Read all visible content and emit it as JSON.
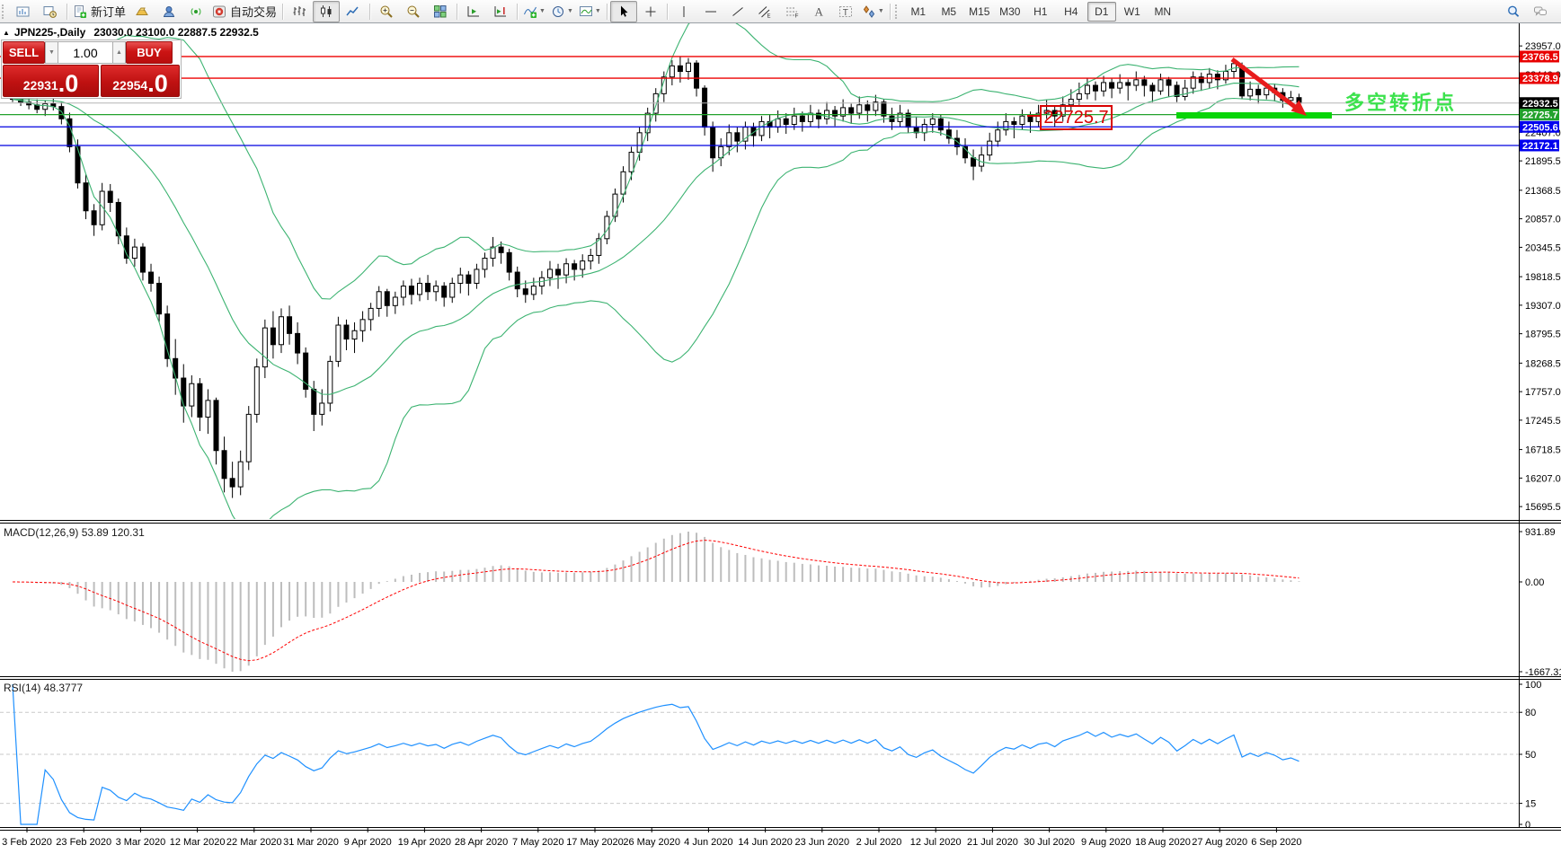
{
  "toolbar": {
    "groups": [
      {
        "items": [
          {
            "icon": "chart-window-icon",
            "name": "new-chart-button"
          },
          {
            "icon": "profiles-icon",
            "name": "profiles-button"
          }
        ]
      },
      {
        "items": [
          {
            "icon": "new-order-icon",
            "name": "new-order-button",
            "label": "新订单"
          },
          {
            "icon": "market-watch-icon",
            "name": "market-watch-button"
          },
          {
            "icon": "community-icon",
            "name": "community-button"
          },
          {
            "icon": "signals-icon",
            "name": "signals-button"
          },
          {
            "icon": "autotrading-icon",
            "name": "autotrading-button",
            "label": "自动交易"
          }
        ]
      },
      {
        "items": [
          {
            "icon": "bar-chart-icon",
            "name": "bar-chart-button"
          },
          {
            "icon": "candlestick-chart-icon",
            "name": "candlestick-chart-button",
            "active": true
          },
          {
            "icon": "line-chart-icon",
            "name": "line-chart-button"
          }
        ]
      },
      {
        "items": [
          {
            "icon": "zoom-in-icon",
            "name": "zoom-in-button"
          },
          {
            "icon": "zoom-out-icon",
            "name": "zoom-out-button"
          },
          {
            "icon": "tile-windows-icon",
            "name": "tile-windows-button"
          }
        ]
      },
      {
        "items": [
          {
            "icon": "auto-scroll-icon",
            "name": "auto-scroll-button"
          },
          {
            "icon": "chart-shift-icon",
            "name": "chart-shift-button"
          }
        ]
      },
      {
        "items": [
          {
            "icon": "indicators-icon",
            "name": "indicators-button",
            "dropdown": true
          },
          {
            "icon": "periods-icon",
            "name": "periods-button",
            "dropdown": true
          },
          {
            "icon": "templates-icon",
            "name": "templates-button",
            "dropdown": true
          }
        ]
      },
      {
        "items": [
          {
            "icon": "cursor-icon",
            "name": "cursor-button",
            "active": true
          },
          {
            "icon": "crosshair-icon",
            "name": "crosshair-button"
          }
        ]
      },
      {
        "items": [
          {
            "icon": "vertical-line-icon",
            "name": "vertical-line-button"
          },
          {
            "icon": "horizontal-line-icon",
            "name": "horizontal-line-button"
          },
          {
            "icon": "trendline-icon",
            "name": "trendline-button"
          },
          {
            "icon": "channel-icon",
            "name": "channel-button"
          },
          {
            "icon": "fibonacci-icon",
            "name": "fibonacci-button"
          },
          {
            "icon": "text-icon",
            "name": "text-button"
          },
          {
            "icon": "text-label-icon",
            "name": "text-label-button"
          },
          {
            "icon": "arrows-icon",
            "name": "arrows-button",
            "dropdown": true
          }
        ]
      }
    ],
    "timeframes": [
      "M1",
      "M5",
      "M15",
      "M30",
      "H1",
      "H4",
      "D1",
      "W1",
      "MN"
    ],
    "active_timeframe": "D1",
    "right_icons": [
      {
        "icon": "search-icon",
        "name": "search-button"
      },
      {
        "icon": "chat-icon",
        "name": "chat-button"
      }
    ]
  },
  "chart": {
    "title": {
      "symbol": "JPN225-,Daily",
      "ohlc": "23030.0 23100.0 22887.5 22932.5"
    },
    "one_click": {
      "sell_label": "SELL",
      "buy_label": "BUY",
      "volume": "1.00",
      "sell_price": "22931",
      "sell_price_frac": ".0",
      "buy_price": "22954",
      "buy_price_frac": ".0"
    }
  },
  "indicators": {
    "macd": {
      "label": "MACD(12,26,9) 53.89 120.31",
      "axis_labels": [
        931.89,
        0.0,
        -1667.31
      ]
    },
    "rsi": {
      "label": "RSI(14) 48.3777",
      "axis_labels": [
        100,
        80,
        50,
        15,
        0
      ],
      "levels": [
        80,
        50,
        15
      ]
    }
  },
  "overlays": {
    "callout_text": "22725.7",
    "annotation_text": "多空转折点",
    "annotation_color": "#3ce24d",
    "support_bar_color": "#08d508",
    "arrow_color": "#e81c1c"
  },
  "chart_data": {
    "type": "candlestick",
    "symbol": "JPN225-",
    "timeframe": "Daily",
    "current_bar_ohlc": {
      "open": 23030.0,
      "high": 23100.0,
      "low": 22887.5,
      "close": 22932.5
    },
    "bid_price": 22932.5,
    "price_ticks": [
      23957.0,
      23446.0,
      22407.0,
      21895.5,
      21368.5,
      20857.0,
      20345.5,
      19818.5,
      19307.0,
      18795.5,
      18268.5,
      17757.0,
      17245.5,
      16718.5,
      16207.0,
      15695.5
    ],
    "hlines": [
      {
        "price": 23766.5,
        "color": "#ee0000",
        "width": 1.4
      },
      {
        "price": 23378.9,
        "color": "#ee0000",
        "width": 1.4
      },
      {
        "price": 22932.5,
        "color": "#b4b4b4",
        "width": 1
      },
      {
        "price": 22725.7,
        "color": "#22a12c",
        "width": 1.2
      },
      {
        "price": 22505.6,
        "color": "#0000e0",
        "width": 1.2
      },
      {
        "price": 22172.1,
        "color": "#0000e0",
        "width": 1.2
      }
    ],
    "price_tags": [
      {
        "value": "23766.5",
        "price": 23766.5,
        "bg": "#e80000"
      },
      {
        "value": "23378.9",
        "price": 23378.9,
        "bg": "#e80000"
      },
      {
        "value": "22932.5",
        "price": 22932.5,
        "bg": "#000000"
      },
      {
        "value": "22725.7",
        "price": 22725.7,
        "bg": "#22a12c"
      },
      {
        "value": "22505.6",
        "price": 22505.6,
        "bg": "#0000ee"
      },
      {
        "value": "22172.1",
        "price": 22172.1,
        "bg": "#0000ee"
      }
    ],
    "date_ticks": [
      "3 Feb 2020",
      "23 Feb 2020",
      "3 Mar 2020",
      "12 Mar 2020",
      "22 Mar 2020",
      "31 Mar 2020",
      "9 Apr 2020",
      "19 Apr 2020",
      "28 Apr 2020",
      "7 May 2020",
      "17 May 2020",
      "26 May 2020",
      "4 Jun 2020",
      "14 Jun 2020",
      "23 Jun 2020",
      "2 Jul 2020",
      "12 Jul 2020",
      "21 Jul 2020",
      "30 Jul 2020",
      "9 Aug 2020",
      "18 Aug 2020",
      "27 Aug 2020",
      "6 Sep 2020"
    ],
    "bollinger": {
      "period": 20,
      "deviation": 2,
      "color": "#3cb371"
    },
    "candles": [
      [
        23100,
        23180,
        22950,
        23000
      ],
      [
        23000,
        23120,
        22880,
        22950
      ],
      [
        22950,
        23060,
        22820,
        22900
      ],
      [
        22900,
        23000,
        22750,
        22820
      ],
      [
        22820,
        22980,
        22700,
        22920
      ],
      [
        22920,
        23030,
        22800,
        22870
      ],
      [
        22870,
        22950,
        22550,
        22650
      ],
      [
        22650,
        22760,
        22050,
        22150
      ],
      [
        22150,
        22280,
        21400,
        21500
      ],
      [
        21500,
        21650,
        20850,
        21000
      ],
      [
        21000,
        21120,
        20550,
        20750
      ],
      [
        20750,
        21500,
        20650,
        21350
      ],
      [
        21350,
        21480,
        20980,
        21150
      ],
      [
        21150,
        21220,
        20400,
        20550
      ],
      [
        20550,
        20700,
        20050,
        20150
      ],
      [
        20150,
        20500,
        20000,
        20350
      ],
      [
        20350,
        20420,
        19750,
        19900
      ],
      [
        19900,
        20050,
        19550,
        19700
      ],
      [
        19700,
        19820,
        19000,
        19150
      ],
      [
        19150,
        19300,
        18200,
        18350
      ],
      [
        18350,
        18700,
        17700,
        18000
      ],
      [
        18000,
        18250,
        17200,
        17500
      ],
      [
        17500,
        18050,
        17300,
        17900
      ],
      [
        17900,
        18000,
        17050,
        17300
      ],
      [
        17300,
        17800,
        17000,
        17600
      ],
      [
        17600,
        17650,
        16450,
        16700
      ],
      [
        16700,
        16950,
        15950,
        16200
      ],
      [
        16200,
        16500,
        15850,
        16050
      ],
      [
        16050,
        16700,
        15900,
        16500
      ],
      [
        16500,
        17500,
        16350,
        17350
      ],
      [
        17350,
        18350,
        17200,
        18200
      ],
      [
        18200,
        19050,
        18000,
        18900
      ],
      [
        18900,
        19200,
        18350,
        18600
      ],
      [
        18600,
        19250,
        18450,
        19100
      ],
      [
        19100,
        19300,
        18600,
        18800
      ],
      [
        18800,
        19000,
        18250,
        18450
      ],
      [
        18450,
        18550,
        17650,
        17800
      ],
      [
        17800,
        17950,
        17050,
        17350
      ],
      [
        17350,
        17800,
        17150,
        17550
      ],
      [
        17550,
        18400,
        17400,
        18300
      ],
      [
        18300,
        19100,
        18200,
        18950
      ],
      [
        18950,
        19050,
        18500,
        18700
      ],
      [
        18700,
        19000,
        18450,
        18850
      ],
      [
        18850,
        19200,
        18650,
        19050
      ],
      [
        19050,
        19350,
        18850,
        19250
      ],
      [
        19250,
        19650,
        19100,
        19550
      ],
      [
        19550,
        19600,
        19100,
        19300
      ],
      [
        19300,
        19550,
        19150,
        19450
      ],
      [
        19450,
        19750,
        19300,
        19650
      ],
      [
        19650,
        19780,
        19320,
        19500
      ],
      [
        19500,
        19800,
        19380,
        19700
      ],
      [
        19700,
        19850,
        19400,
        19550
      ],
      [
        19550,
        19750,
        19380,
        19650
      ],
      [
        19650,
        19720,
        19280,
        19450
      ],
      [
        19450,
        19800,
        19350,
        19700
      ],
      [
        19700,
        19980,
        19520,
        19850
      ],
      [
        19850,
        19920,
        19480,
        19700
      ],
      [
        19700,
        20050,
        19600,
        19950
      ],
      [
        19950,
        20250,
        19800,
        20150
      ],
      [
        20150,
        20530,
        20000,
        20350
      ],
      [
        20350,
        20450,
        20050,
        20250
      ],
      [
        20250,
        20320,
        19750,
        19900
      ],
      [
        19900,
        20000,
        19450,
        19600
      ],
      [
        19600,
        19750,
        19350,
        19500
      ],
      [
        19500,
        19800,
        19400,
        19650
      ],
      [
        19650,
        19920,
        19500,
        19800
      ],
      [
        19800,
        20100,
        19650,
        19950
      ],
      [
        19950,
        20050,
        19600,
        19850
      ],
      [
        19850,
        20150,
        19700,
        20050
      ],
      [
        20050,
        20120,
        19750,
        19950
      ],
      [
        19950,
        20220,
        19800,
        20100
      ],
      [
        20100,
        20320,
        19950,
        20200
      ],
      [
        20200,
        20600,
        20050,
        20500
      ],
      [
        20500,
        21000,
        20400,
        20900
      ],
      [
        20900,
        21400,
        20800,
        21300
      ],
      [
        21300,
        21800,
        21150,
        21700
      ],
      [
        21700,
        22150,
        21550,
        22050
      ],
      [
        22050,
        22500,
        21900,
        22400
      ],
      [
        22400,
        22850,
        22250,
        22750
      ],
      [
        22750,
        23200,
        22600,
        23100
      ],
      [
        23100,
        23500,
        22950,
        23400
      ],
      [
        23400,
        23700,
        23250,
        23600
      ],
      [
        23600,
        23760,
        23300,
        23500
      ],
      [
        23500,
        23740,
        23350,
        23650
      ],
      [
        23650,
        23700,
        23050,
        23200
      ],
      [
        23200,
        23250,
        22350,
        22500
      ],
      [
        22500,
        22600,
        21700,
        21950
      ],
      [
        21950,
        22300,
        21800,
        22150
      ],
      [
        22150,
        22550,
        22000,
        22400
      ],
      [
        22400,
        22500,
        22050,
        22250
      ],
      [
        22250,
        22600,
        22100,
        22500
      ],
      [
        22500,
        22580,
        22150,
        22350
      ],
      [
        22350,
        22700,
        22250,
        22600
      ],
      [
        22600,
        22720,
        22300,
        22500
      ],
      [
        22500,
        22800,
        22400,
        22650
      ],
      [
        22650,
        22750,
        22380,
        22550
      ],
      [
        22550,
        22850,
        22450,
        22700
      ],
      [
        22700,
        22780,
        22420,
        22600
      ],
      [
        22600,
        22900,
        22500,
        22750
      ],
      [
        22750,
        22820,
        22480,
        22650
      ],
      [
        22650,
        22950,
        22550,
        22800
      ],
      [
        22800,
        22880,
        22520,
        22700
      ],
      [
        22700,
        23000,
        22600,
        22850
      ],
      [
        22850,
        22920,
        22560,
        22750
      ],
      [
        22750,
        23050,
        22650,
        22900
      ],
      [
        22900,
        22980,
        22600,
        22800
      ],
      [
        22800,
        23080,
        22700,
        22950
      ],
      [
        22950,
        23000,
        22580,
        22700
      ],
      [
        22700,
        22850,
        22450,
        22600
      ],
      [
        22600,
        22900,
        22500,
        22750
      ],
      [
        22750,
        22820,
        22400,
        22500
      ],
      [
        22500,
        22680,
        22300,
        22400
      ],
      [
        22400,
        22650,
        22250,
        22550
      ],
      [
        22550,
        22750,
        22400,
        22650
      ],
      [
        22650,
        22720,
        22350,
        22450
      ],
      [
        22450,
        22600,
        22200,
        22300
      ],
      [
        22300,
        22450,
        22000,
        22150
      ],
      [
        22150,
        22300,
        21850,
        21950
      ],
      [
        21950,
        22100,
        21550,
        21800
      ],
      [
        21800,
        22150,
        21700,
        22000
      ],
      [
        22000,
        22400,
        21900,
        22250
      ],
      [
        22250,
        22600,
        22150,
        22450
      ],
      [
        22450,
        22750,
        22350,
        22600
      ],
      [
        22600,
        22680,
        22300,
        22550
      ],
      [
        22550,
        22820,
        22450,
        22700
      ],
      [
        22700,
        22780,
        22400,
        22600
      ],
      [
        22600,
        22900,
        22500,
        22750
      ],
      [
        22750,
        23000,
        22650,
        22800
      ],
      [
        22800,
        22870,
        22500,
        22700
      ],
      [
        22700,
        23050,
        22600,
        22900
      ],
      [
        22900,
        23180,
        22800,
        23000
      ],
      [
        23000,
        23300,
        22900,
        23100
      ],
      [
        23100,
        23380,
        23000,
        23250
      ],
      [
        23250,
        23320,
        22980,
        23150
      ],
      [
        23150,
        23420,
        23050,
        23300
      ],
      [
        23300,
        23370,
        23020,
        23200
      ],
      [
        23200,
        23450,
        23100,
        23300
      ],
      [
        23300,
        23360,
        22980,
        23250
      ],
      [
        23250,
        23500,
        23150,
        23350
      ],
      [
        23350,
        23420,
        23050,
        23250
      ],
      [
        23250,
        23300,
        22950,
        23150
      ],
      [
        23150,
        23460,
        23080,
        23350
      ],
      [
        23350,
        23400,
        23050,
        23250
      ],
      [
        23250,
        23320,
        22950,
        23050
      ],
      [
        23050,
        23350,
        22980,
        23200
      ],
      [
        23200,
        23500,
        23100,
        23400
      ],
      [
        23400,
        23480,
        23150,
        23300
      ],
      [
        23300,
        23560,
        23200,
        23450
      ],
      [
        23450,
        23520,
        23180,
        23350
      ],
      [
        23350,
        23620,
        23280,
        23500
      ],
      [
        23500,
        23730,
        23380,
        23640
      ],
      [
        23600,
        23660,
        23000,
        23060
      ],
      [
        23060,
        23320,
        22980,
        23180
      ],
      [
        23180,
        23260,
        22920,
        23080
      ],
      [
        23080,
        23300,
        23000,
        23200
      ],
      [
        23200,
        23280,
        22960,
        23120
      ],
      [
        23120,
        23200,
        22850,
        22980
      ],
      [
        22980,
        23150,
        22900,
        23030
      ],
      [
        23030,
        23100,
        22887.5,
        22932.5
      ]
    ]
  }
}
